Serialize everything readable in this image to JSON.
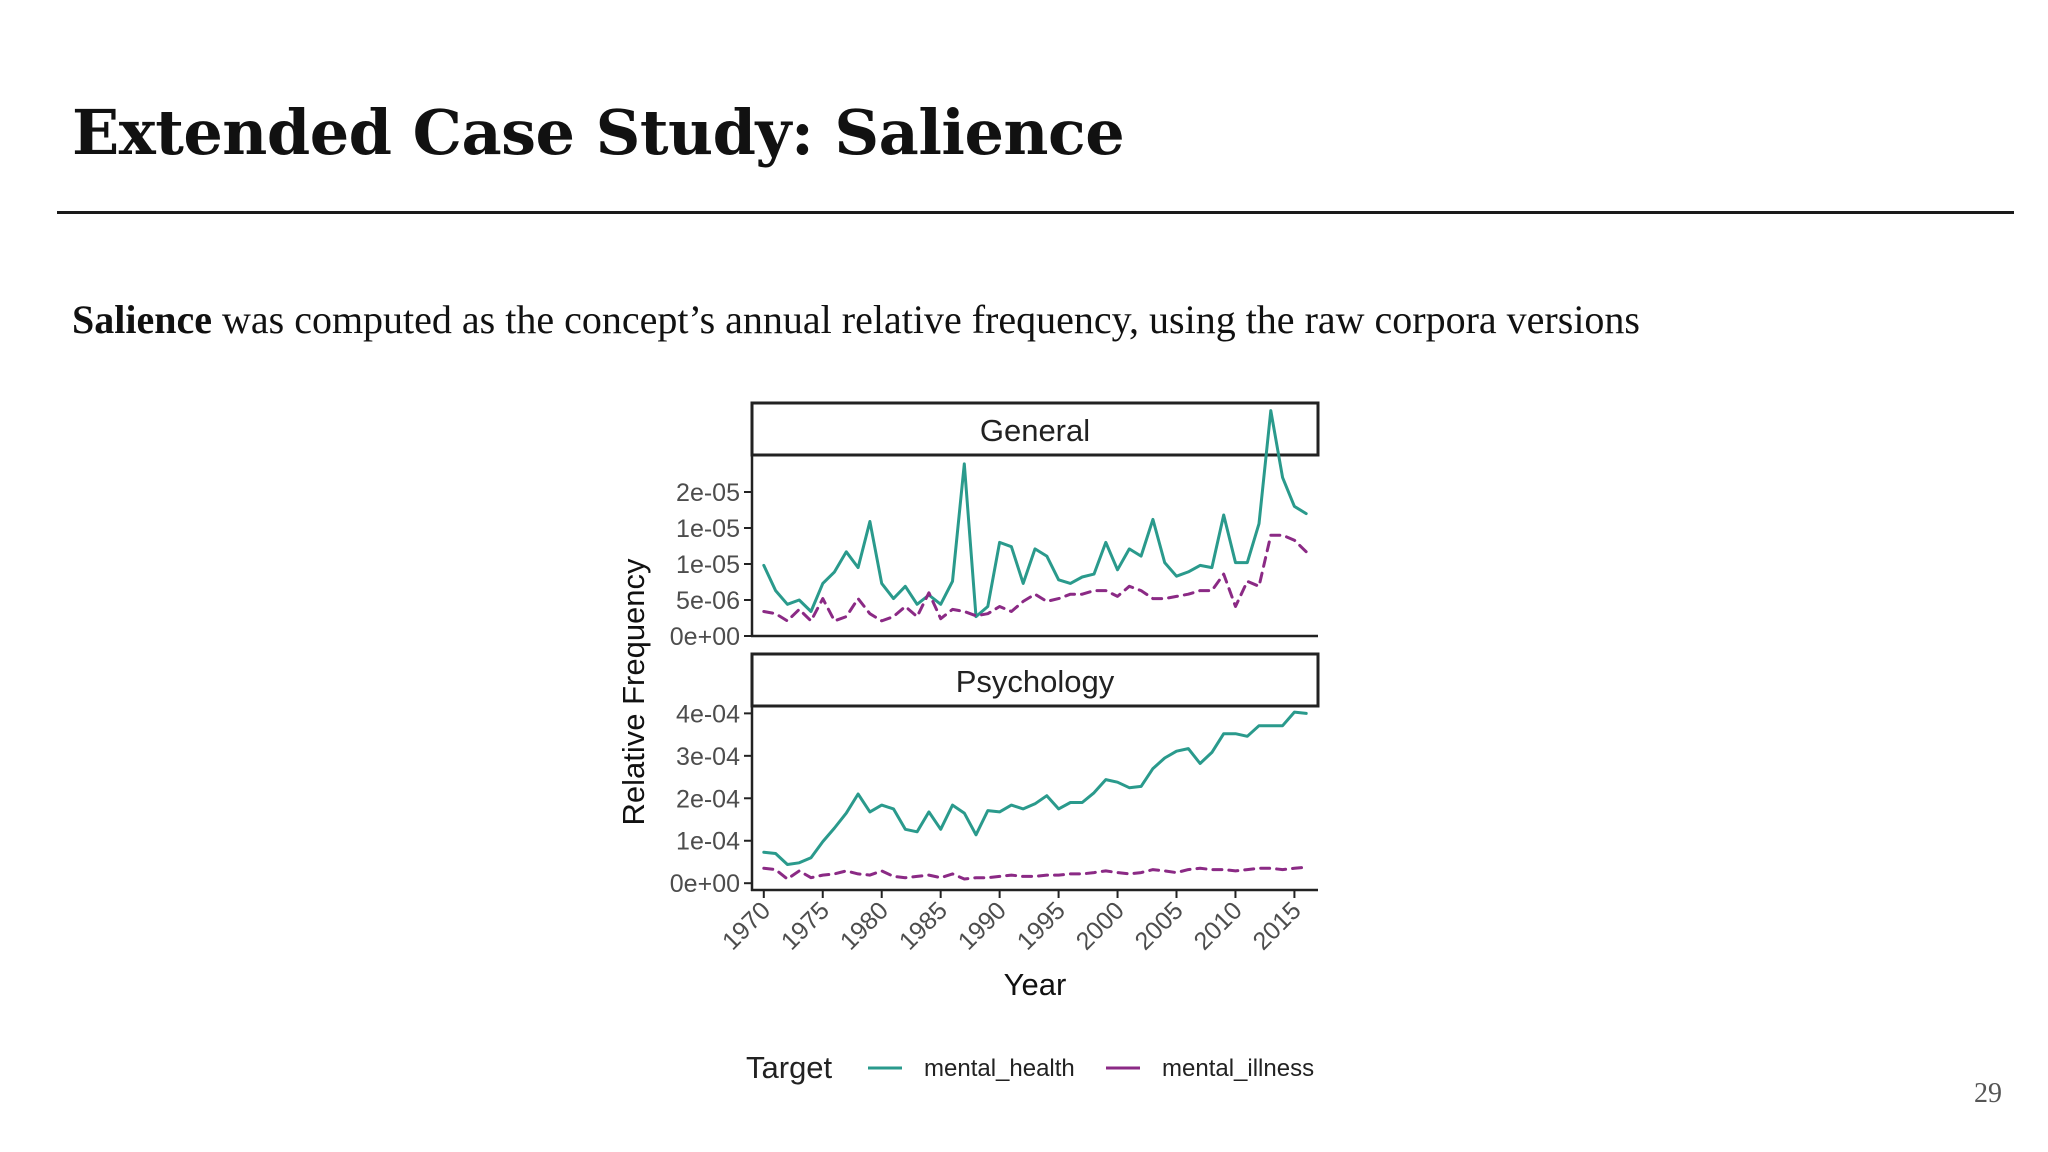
{
  "slide": {
    "title": "Extended Case Study: Salience",
    "body_bold": "Salience",
    "body_rest": " was computed as the concept’s annual relative frequency, using the raw corpora versions",
    "page_number": "29"
  },
  "colors": {
    "mental_health": "#2a9a8c",
    "mental_illness": "#8b2a85"
  },
  "chart_data": {
    "type": "line",
    "xlabel": "Year",
    "ylabel": "Relative Frequency",
    "legend_title": "Target",
    "legend_position": "bottom",
    "grid": false,
    "x_ticks": [
      "1970",
      "1975",
      "1980",
      "1985",
      "1990",
      "1995",
      "2000",
      "2005",
      "2010",
      "2015"
    ],
    "x_range": [
      1969,
      2017
    ],
    "x": [
      1970,
      1971,
      1972,
      1973,
      1974,
      1975,
      1976,
      1977,
      1978,
      1979,
      1980,
      1981,
      1982,
      1983,
      1984,
      1985,
      1986,
      1987,
      1988,
      1989,
      1990,
      1991,
      1992,
      1993,
      1994,
      1995,
      1996,
      1997,
      1998,
      1999,
      2000,
      2001,
      2002,
      2003,
      2004,
      2005,
      2006,
      2007,
      2008,
      2009,
      2010,
      2011,
      2012,
      2013,
      2014,
      2015,
      2016
    ],
    "panels": [
      {
        "title": "General",
        "y_ticks": [
          "0e+00",
          "5e-06",
          "1e-05",
          "1e-05",
          "2e-05"
        ],
        "y_range": [
          0,
          2.5e-05
        ],
        "series": [
          {
            "name": "mental_health",
            "style": "solid",
            "values": [
              9.8e-06,
              6.3e-06,
              4.4e-06,
              5e-06,
              3.4e-06,
              7.3e-06,
              8.9e-06,
              1.17e-05,
              9.5e-06,
              1.59e-05,
              7.3e-06,
              5.2e-06,
              6.9e-06,
              4.4e-06,
              5.7e-06,
              4.4e-06,
              7.6e-06,
              2.39e-05,
              2.7e-06,
              4.1e-06,
              1.3e-05,
              1.24e-05,
              7.3e-06,
              1.21e-05,
              1.11e-05,
              7.8e-06,
              7.3e-06,
              8.2e-06,
              8.6e-06,
              1.3e-05,
              9.2e-06,
              1.21e-05,
              1.11e-05,
              1.62e-05,
              1.02e-05,
              8.3e-06,
              8.9e-06,
              9.8e-06,
              9.5e-06,
              1.68e-05,
              1.02e-05,
              1.02e-05,
              1.56e-05,
              3.13e-05,
              2.2e-05,
              1.8e-05,
              1.7e-05
            ]
          },
          {
            "name": "mental_illness",
            "style": "dashed",
            "values": [
              3.4e-06,
              3.1e-06,
              2.1e-06,
              3.7e-06,
              2.1e-06,
              5.2e-06,
              2.1e-06,
              2.7e-06,
              5.2e-06,
              3.1e-06,
              2.1e-06,
              2.7e-06,
              4.1e-06,
              2.7e-06,
              6e-06,
              2.4e-06,
              3.7e-06,
              3.4e-06,
              2.8e-06,
              3.1e-06,
              4.1e-06,
              3.4e-06,
              4.8e-06,
              5.8e-06,
              4.8e-06,
              5.2e-06,
              5.8e-06,
              5.8e-06,
              6.3e-06,
              6.3e-06,
              5.5e-06,
              6.9e-06,
              6.3e-06,
              5.2e-06,
              5.2e-06,
              5.5e-06,
              5.8e-06,
              6.3e-06,
              6.3e-06,
              8.6e-06,
              4.1e-06,
              7.6e-06,
              6.9e-06,
              1.4e-05,
              1.4e-05,
              1.33e-05,
              1.17e-05
            ]
          }
        ]
      },
      {
        "title": "Psychology",
        "y_ticks": [
          "0e+00",
          "1e-04",
          "2e-04",
          "3e-04",
          "4e-04"
        ],
        "y_range": [
          -1.6e-05,
          0.000415
        ],
        "series": [
          {
            "name": "mental_health",
            "style": "solid",
            "values": [
              7.3e-05,
              7e-05,
              4.4e-05,
              4.8e-05,
              6e-05,
              9.8e-05,
              0.00013,
              0.000165,
              0.00021,
              0.000168,
              0.000184,
              0.000175,
              0.000127,
              0.000121,
              0.000168,
              0.000127,
              0.000184,
              0.000165,
              0.000114,
              0.000171,
              0.000168,
              0.000184,
              0.000175,
              0.000187,
              0.000206,
              0.000175,
              0.00019,
              0.00019,
              0.000213,
              0.000244,
              0.000238,
              0.000225,
              0.000228,
              0.00027,
              0.000295,
              0.000311,
              0.000317,
              0.000282,
              0.000308,
              0.000352,
              0.000352,
              0.000346,
              0.000371,
              0.000371,
              0.000371,
              0.000403,
              0.0004
            ]
          },
          {
            "name": "mental_illness",
            "style": "dashed",
            "values": [
              3.5e-05,
              3.2e-05,
              1e-05,
              2.9e-05,
              1.3e-05,
              1.9e-05,
              2.2e-05,
              2.9e-05,
              2.2e-05,
              1.9e-05,
              2.9e-05,
              1.6e-05,
              1.3e-05,
              1.6e-05,
              1.9e-05,
              1.3e-05,
              2.2e-05,
              1e-05,
              1.3e-05,
              1.3e-05,
              1.6e-05,
              1.9e-05,
              1.6e-05,
              1.6e-05,
              1.9e-05,
              1.9e-05,
              2.2e-05,
              2.2e-05,
              2.5e-05,
              2.9e-05,
              2.5e-05,
              2.2e-05,
              2.5e-05,
              3.2e-05,
              2.9e-05,
              2.5e-05,
              3.2e-05,
              3.5e-05,
              3.2e-05,
              3.2e-05,
              2.9e-05,
              3.2e-05,
              3.5e-05,
              3.5e-05,
              3.2e-05,
              3.5e-05,
              3.8e-05
            ]
          }
        ]
      }
    ],
    "legend": [
      {
        "name": "mental_health",
        "style": "solid"
      },
      {
        "name": "mental_illness",
        "style": "dashed"
      }
    ]
  }
}
